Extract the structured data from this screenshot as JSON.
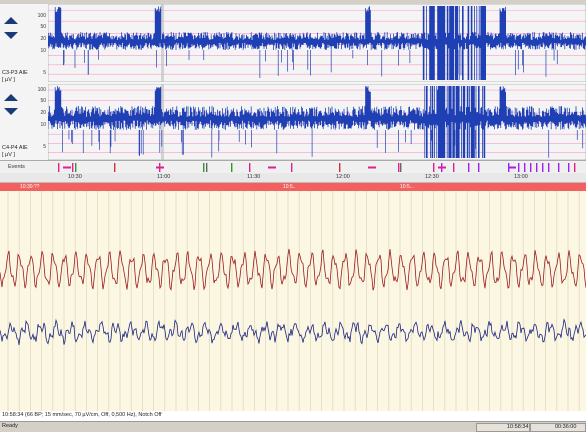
{
  "channels": [
    {
      "label": "C3-P3 AIE",
      "unit": "[ µV ]",
      "ticks": [
        "100",
        "50",
        "20",
        "10",
        "5"
      ]
    },
    {
      "label": "C4-P4 AIE",
      "unit": "[ µV ]",
      "ticks": [
        "100",
        "50",
        "20",
        "10",
        "5"
      ]
    }
  ],
  "events_label": "Events",
  "timeline": [
    "10:30",
    "11:00",
    "11:30",
    "12:00",
    "12:30",
    "13:00"
  ],
  "page_bar": {
    "left": "10:30:??",
    "center": "10:5..",
    "right": "10:5..."
  },
  "info_text": "10:58:34 (66 BP; 15 mm/sec, 70 µV/cm, Off, 0,500 Hz), Notch Off",
  "status": {
    "ready": "Ready",
    "clock": "10:58:34",
    "duration": "00:36:00"
  },
  "colors": {
    "trend": "#1f3fb5",
    "trace_top": "#9b1b1b",
    "trace_bottom": "#1a237e",
    "accent": "#f26060"
  }
}
